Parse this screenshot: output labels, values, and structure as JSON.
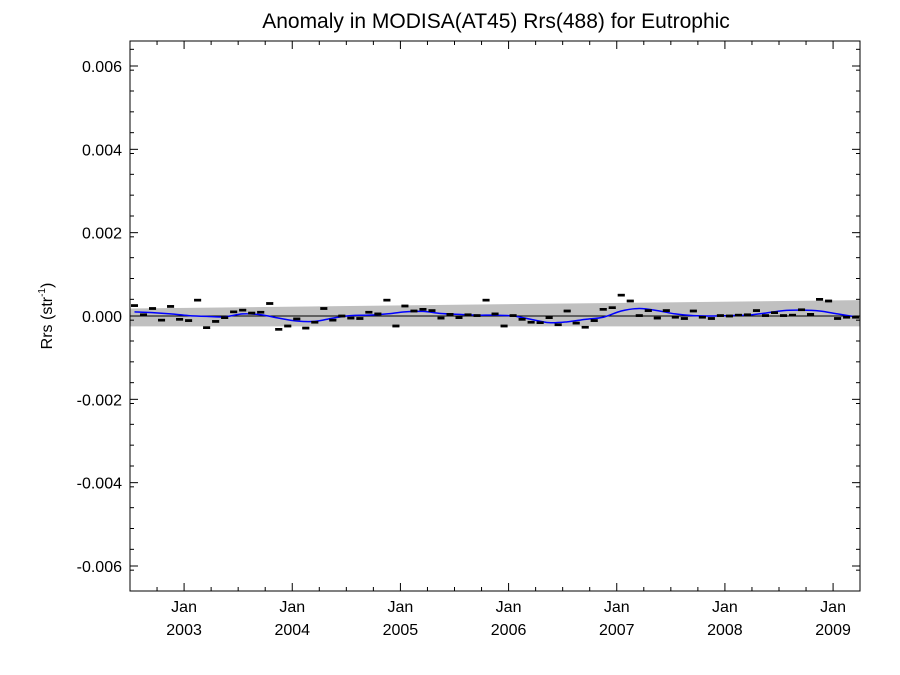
{
  "chart_data": {
    "type": "line",
    "title": "Anomaly in MODISA(AT45) Rrs(488) for Eutrophic",
    "ylabel": "Rrs (str",
    "ylabel_sup": "-1",
    "ylabel_close": ")",
    "xlabel": "",
    "xlim": [
      "2002-07-01",
      "2009-03-31"
    ],
    "ylim": [
      -0.0066,
      0.0066
    ],
    "yticks": [
      -0.006,
      -0.004,
      -0.002,
      0.0,
      0.002,
      0.004,
      0.006
    ],
    "yticklabels": [
      "-0.006",
      "-0.004",
      "-0.002",
      "0.000",
      "0.002",
      "0.004",
      "0.006"
    ],
    "xticks": [
      "2003-01-01",
      "2004-01-01",
      "2005-01-01",
      "2006-01-01",
      "2007-01-01",
      "2008-01-01",
      "2009-01-01"
    ],
    "xticklabels_month": [
      "Jan",
      "Jan",
      "Jan",
      "Jan",
      "Jan",
      "Jan",
      "Jan"
    ],
    "xticklabels_year": [
      "2003",
      "2004",
      "2005",
      "2006",
      "2007",
      "2008",
      "2009"
    ],
    "zero_line": 0.0,
    "trend_band": {
      "color": "#c0c0c0",
      "start": {
        "date": "2002-07-01",
        "lower": -0.00025,
        "upper": 0.00018
      },
      "end": {
        "date": "2009-03-31",
        "lower": -0.00025,
        "upper": 0.00038
      }
    },
    "series": [
      {
        "kind": "monthly-anomaly-points",
        "color": "#000000",
        "dates": [
          "2002-07",
          "2002-08",
          "2002-09",
          "2002-10",
          "2002-11",
          "2002-12",
          "2003-01",
          "2003-02",
          "2003-03",
          "2003-04",
          "2003-05",
          "2003-06",
          "2003-07",
          "2003-08",
          "2003-09",
          "2003-10",
          "2003-11",
          "2003-12",
          "2004-01",
          "2004-02",
          "2004-03",
          "2004-04",
          "2004-05",
          "2004-06",
          "2004-07",
          "2004-08",
          "2004-09",
          "2004-10",
          "2004-11",
          "2004-12",
          "2005-01",
          "2005-02",
          "2005-03",
          "2005-04",
          "2005-05",
          "2005-06",
          "2005-07",
          "2005-08",
          "2005-09",
          "2005-10",
          "2005-11",
          "2005-12",
          "2006-01",
          "2006-02",
          "2006-03",
          "2006-04",
          "2006-05",
          "2006-06",
          "2006-07",
          "2006-08",
          "2006-09",
          "2006-10",
          "2006-11",
          "2006-12",
          "2007-01",
          "2007-02",
          "2007-03",
          "2007-04",
          "2007-05",
          "2007-06",
          "2007-07",
          "2007-08",
          "2007-09",
          "2007-10",
          "2007-11",
          "2007-12",
          "2008-01",
          "2008-02",
          "2008-03",
          "2008-04",
          "2008-05",
          "2008-06",
          "2008-07",
          "2008-08",
          "2008-09",
          "2008-10",
          "2008-11",
          "2008-12",
          "2009-01",
          "2009-02",
          "2009-03"
        ],
        "values": [
          0.00025,
          3e-05,
          0.00018,
          -0.0001,
          0.00023,
          -8e-05,
          -0.00011,
          0.00038,
          -0.00028,
          -0.00013,
          -4e-05,
          0.0001,
          0.00014,
          7e-05,
          9e-05,
          0.0003,
          -0.00032,
          -0.00024,
          -7e-05,
          -0.00029,
          -0.00015,
          0.00018,
          -0.0001,
          0.0,
          -5e-05,
          -6e-05,
          9e-05,
          5e-05,
          0.00038,
          -0.00024,
          0.00024,
          0.00012,
          0.00016,
          0.00013,
          -5e-05,
          4e-05,
          -4e-05,
          3e-05,
          1e-05,
          0.00038,
          5e-05,
          -0.00024,
          1e-05,
          -8e-05,
          -0.00015,
          -0.00016,
          -4e-05,
          -0.00021,
          0.00012,
          -0.00017,
          -0.00027,
          -0.00011,
          0.00016,
          0.0002,
          0.0005,
          0.00036,
          1e-05,
          0.00013,
          -5e-05,
          0.00013,
          -3e-05,
          -6e-05,
          0.00012,
          -3e-05,
          -6e-05,
          1e-05,
          0.0,
          2e-05,
          3e-05,
          0.00013,
          1e-05,
          8e-05,
          1e-05,
          2e-05,
          0.00015,
          4e-05,
          0.0004,
          0.00036,
          -6e-05,
          -3e-05,
          -3e-05
        ],
        "error": 2e-05
      },
      {
        "kind": "smoothed",
        "color": "#0000ff",
        "dates": [
          "2002-07",
          "2002-09",
          "2002-11",
          "2003-01",
          "2003-03",
          "2003-05",
          "2003-07",
          "2003-09",
          "2003-11",
          "2004-01",
          "2004-03",
          "2004-05",
          "2004-07",
          "2004-09",
          "2004-11",
          "2005-01",
          "2005-03",
          "2005-05",
          "2005-07",
          "2005-09",
          "2005-11",
          "2006-01",
          "2006-03",
          "2006-05",
          "2006-07",
          "2006-09",
          "2006-11",
          "2007-01",
          "2007-03",
          "2007-05",
          "2007-07",
          "2007-09",
          "2007-11",
          "2008-01",
          "2008-03",
          "2008-05",
          "2008-07",
          "2008-09",
          "2008-11",
          "2009-01",
          "2009-03"
        ],
        "values": [
          0.0001,
          8e-05,
          5e-05,
          1e-05,
          -1e-05,
          -2e-05,
          5e-05,
          3e-05,
          -5e-05,
          -0.00012,
          -0.00013,
          -5e-05,
          1e-05,
          2e-05,
          5e-05,
          0.0001,
          0.00011,
          6e-05,
          4e-05,
          2e-05,
          2e-05,
          0.0,
          -8e-05,
          -0.00016,
          -0.00014,
          -8e-05,
          -3e-05,
          0.00012,
          0.00018,
          0.00013,
          5e-05,
          1e-05,
          0.0,
          1e-05,
          2e-05,
          7e-05,
          0.00013,
          0.00014,
          0.00012,
          5e-05,
          -2e-05
        ]
      }
    ]
  }
}
